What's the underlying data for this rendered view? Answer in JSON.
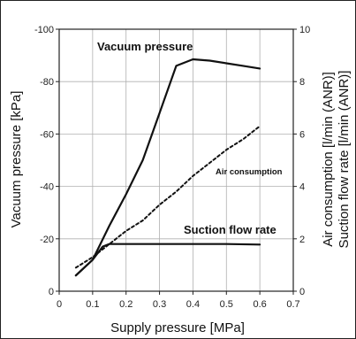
{
  "chart_data": {
    "type": "line",
    "xlabel": "Supply pressure [MPa]",
    "ylabel_left": "Vacuum pressure [kPa]",
    "ylabel_right": [
      "Air consumption [l/min (ANR)]",
      "Suction flow rate [l/min (ANR)]"
    ],
    "xlim": [
      0,
      0.7
    ],
    "ylim_left": [
      0,
      -100
    ],
    "ylim_right": [
      0,
      10
    ],
    "x_ticks": [
      "0",
      "0.1",
      "0.2",
      "0.3",
      "0.4",
      "0.5",
      "0.6",
      "0.7"
    ],
    "y_left_ticks": [
      "0",
      "-20",
      "-40",
      "-60",
      "-80",
      "-100"
    ],
    "y_right_ticks": [
      "0",
      "2",
      "4",
      "6",
      "8",
      "10"
    ],
    "grid": true,
    "series": [
      {
        "name": "Vacuum pressure",
        "axis": "left",
        "style": "solid",
        "points": [
          [
            0.05,
            -6
          ],
          [
            0.1,
            -12
          ],
          [
            0.15,
            -25
          ],
          [
            0.2,
            -37
          ],
          [
            0.25,
            -50
          ],
          [
            0.3,
            -68
          ],
          [
            0.35,
            -86
          ],
          [
            0.4,
            -88.5
          ],
          [
            0.45,
            -88
          ],
          [
            0.5,
            -87
          ],
          [
            0.55,
            -86
          ],
          [
            0.6,
            -85
          ]
        ]
      },
      {
        "name": "Air consumption",
        "axis": "right",
        "style": "dashed",
        "points": [
          [
            0.05,
            0.9
          ],
          [
            0.1,
            1.3
          ],
          [
            0.15,
            1.8
          ],
          [
            0.2,
            2.3
          ],
          [
            0.25,
            2.7
          ],
          [
            0.3,
            3.3
          ],
          [
            0.35,
            3.8
          ],
          [
            0.4,
            4.4
          ],
          [
            0.45,
            4.9
          ],
          [
            0.5,
            5.4
          ],
          [
            0.55,
            5.8
          ],
          [
            0.6,
            6.3
          ]
        ]
      },
      {
        "name": "Suction flow rate",
        "axis": "right",
        "style": "solid",
        "points": [
          [
            0.05,
            0.6
          ],
          [
            0.1,
            1.2
          ],
          [
            0.13,
            1.7
          ],
          [
            0.15,
            1.8
          ],
          [
            0.2,
            1.8
          ],
          [
            0.3,
            1.8
          ],
          [
            0.4,
            1.8
          ],
          [
            0.5,
            1.8
          ],
          [
            0.6,
            1.78
          ]
        ]
      }
    ]
  },
  "annotations": [
    {
      "text": "Vacuum pressure",
      "size": "large"
    },
    {
      "text": "Air consumption",
      "size": "small"
    },
    {
      "text": "Suction flow rate",
      "size": "large"
    }
  ]
}
